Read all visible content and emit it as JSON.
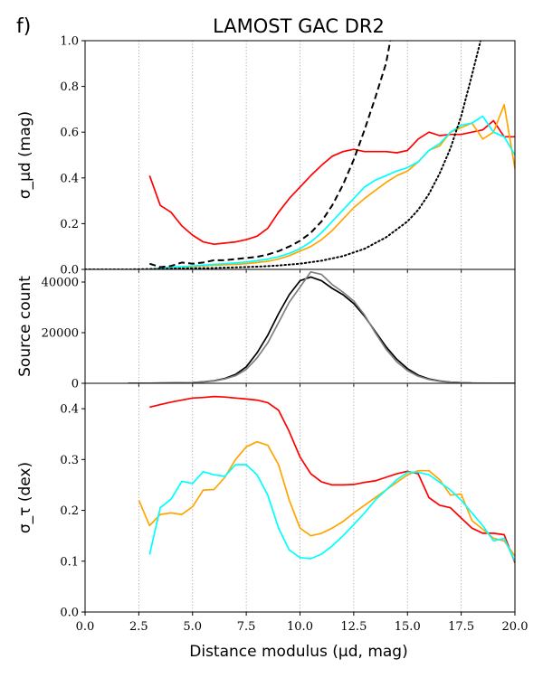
{
  "panel_label": "f)",
  "chart_data": {
    "type": "line",
    "title": "LAMOST GAC DR2",
    "xlabel": "Distance modulus (μd, mag)",
    "xlim": [
      0,
      20
    ],
    "x_ticks": [
      0,
      2.5,
      5,
      7.5,
      10,
      12.5,
      15,
      17.5,
      20
    ],
    "x_tick_labels": [
      "0.0",
      "2.5",
      "5.0",
      "7.5",
      "10.0",
      "12.5",
      "15.0",
      "17.5",
      "20.0"
    ],
    "vertical_dotted_lines_x": [
      2.5,
      5,
      7.5,
      10,
      12.5,
      15,
      17.5
    ],
    "panels": [
      {
        "id": "sigma_mu",
        "ylabel": "σ_μd (mag)",
        "ylim": [
          0,
          1
        ],
        "y_ticks": [
          0,
          0.2,
          0.4,
          0.6,
          0.8,
          1.0
        ],
        "y_tick_labels": [
          "0.0",
          "0.2",
          "0.4",
          "0.6",
          "0.8",
          "1.0"
        ],
        "series": [
          {
            "name": "red",
            "color": "#ff0000",
            "style": "solid",
            "x": [
              3,
              3.5,
              4,
              4.5,
              5,
              5.5,
              6,
              6.5,
              7,
              7.5,
              8,
              8.5,
              9,
              9.5,
              10,
              10.5,
              11,
              11.5,
              12,
              12.5,
              13,
              13.5,
              14,
              14.5,
              15,
              15.5,
              16,
              16.5,
              17,
              17.5,
              18,
              18.5,
              19,
              19.5,
              20
            ],
            "y": [
              0.41,
              0.28,
              0.25,
              0.19,
              0.15,
              0.12,
              0.11,
              0.115,
              0.12,
              0.13,
              0.145,
              0.18,
              0.25,
              0.31,
              0.36,
              0.41,
              0.455,
              0.495,
              0.515,
              0.525,
              0.515,
              0.515,
              0.515,
              0.51,
              0.52,
              0.57,
              0.6,
              0.585,
              0.59,
              0.59,
              0.6,
              0.61,
              0.65,
              0.58,
              0.58
            ]
          },
          {
            "name": "orange",
            "color": "#ffa500",
            "style": "solid",
            "x": [
              3,
              3.5,
              4,
              4.5,
              5,
              5.5,
              6,
              6.5,
              7,
              7.5,
              8,
              8.5,
              9,
              9.5,
              10,
              10.5,
              11,
              11.5,
              12,
              12.5,
              13,
              13.5,
              14,
              14.5,
              15,
              15.5,
              16,
              16.5,
              17,
              17.5,
              18,
              18.5,
              19,
              19.5,
              20
            ],
            "y": [
              0.0,
              0.005,
              0.008,
              0.01,
              0.012,
              0.015,
              0.018,
              0.02,
              0.022,
              0.025,
              0.03,
              0.035,
              0.045,
              0.06,
              0.08,
              0.1,
              0.13,
              0.17,
              0.22,
              0.27,
              0.31,
              0.345,
              0.38,
              0.41,
              0.43,
              0.47,
              0.52,
              0.54,
              0.6,
              0.62,
              0.64,
              0.57,
              0.6,
              0.72,
              0.44
            ]
          },
          {
            "name": "cyan",
            "color": "#00ffff",
            "style": "solid",
            "x": [
              3,
              3.5,
              4,
              4.5,
              5,
              5.5,
              6,
              6.5,
              7,
              7.5,
              8,
              8.5,
              9,
              9.5,
              10,
              10.5,
              11,
              11.5,
              12,
              12.5,
              13,
              13.5,
              14,
              14.5,
              15,
              15.5,
              16,
              16.5,
              17,
              17.5,
              18,
              18.5,
              19,
              19.5,
              20
            ],
            "y": [
              0.0,
              0.005,
              0.01,
              0.012,
              0.015,
              0.018,
              0.022,
              0.025,
              0.028,
              0.032,
              0.038,
              0.045,
              0.055,
              0.07,
              0.09,
              0.12,
              0.16,
              0.21,
              0.26,
              0.31,
              0.36,
              0.39,
              0.41,
              0.43,
              0.445,
              0.47,
              0.52,
              0.55,
              0.6,
              0.63,
              0.64,
              0.67,
              0.6,
              0.58,
              0.5
            ]
          },
          {
            "name": "black dashed",
            "color": "#000000",
            "style": "dashed",
            "x": [
              3,
              3.5,
              4,
              4.5,
              5,
              5.5,
              6,
              6.5,
              7,
              7.5,
              8,
              8.5,
              9,
              9.5,
              10,
              10.5,
              11,
              11.5,
              12,
              12.5,
              13,
              13.5,
              14,
              14.2
            ],
            "y": [
              0.025,
              0.01,
              0.015,
              0.03,
              0.025,
              0.03,
              0.04,
              0.04,
              0.045,
              0.05,
              0.055,
              0.065,
              0.08,
              0.1,
              0.125,
              0.16,
              0.21,
              0.28,
              0.37,
              0.48,
              0.61,
              0.75,
              0.9,
              1.0
            ]
          },
          {
            "name": "black dotted",
            "color": "#000000",
            "style": "dotted",
            "x": [
              0,
              2,
              4,
              6,
              8,
              9,
              10,
              11,
              12,
              13,
              14,
              15,
              15.5,
              16,
              16.5,
              17,
              17.5,
              18,
              18.4
            ],
            "y": [
              0.0,
              0.0,
              0.003,
              0.006,
              0.012,
              0.017,
              0.025,
              0.038,
              0.058,
              0.09,
              0.14,
              0.21,
              0.26,
              0.33,
              0.42,
              0.53,
              0.67,
              0.85,
              1.0
            ]
          }
        ]
      },
      {
        "id": "source_count",
        "ylabel": "Source count",
        "ylim": [
          0,
          45000
        ],
        "y_ticks": [
          0,
          20000,
          40000
        ],
        "y_tick_labels": [
          "0",
          "20000",
          "40000"
        ],
        "series": [
          {
            "name": "black",
            "color": "#000000",
            "style": "solid",
            "x": [
              2,
              3,
              4,
              5,
              5.5,
              6,
              6.5,
              7,
              7.5,
              8,
              8.5,
              9,
              9.5,
              10,
              10.5,
              11,
              11.5,
              12,
              12.5,
              13,
              13.5,
              14,
              14.5,
              15,
              15.5,
              16,
              16.5,
              17,
              17.5,
              18,
              19,
              20
            ],
            "y": [
              0,
              50,
              150,
              300,
              600,
              1000,
              1900,
              3500,
              6500,
              12000,
              19000,
              27500,
              35000,
              40500,
              42000,
              40500,
              37500,
              35000,
              31500,
              26500,
              20500,
              14500,
              9500,
              5800,
              3200,
              1700,
              900,
              450,
              250,
              120,
              40,
              10
            ]
          },
          {
            "name": "gray",
            "color": "#808080",
            "style": "solid",
            "x": [
              2,
              3,
              4,
              5,
              5.5,
              6,
              6.5,
              7,
              7.5,
              8,
              8.5,
              9,
              9.5,
              10,
              10.5,
              11,
              11.5,
              12,
              12.5,
              13,
              13.5,
              14,
              14.5,
              15,
              15.5,
              16,
              16.5,
              17,
              17.5,
              18,
              19,
              20
            ],
            "y": [
              0,
              50,
              150,
              300,
              550,
              900,
              1700,
              3000,
              5500,
              10000,
              16000,
              24000,
              32000,
              38000,
              44000,
              43000,
              39000,
              36000,
              32500,
              27000,
              20000,
              13500,
              8500,
              5000,
              2800,
              1500,
              800,
              400,
              200,
              100,
              30,
              10
            ]
          }
        ]
      },
      {
        "id": "sigma_tau",
        "ylabel": "σ_τ (dex)",
        "ylim": [
          0,
          0.45
        ],
        "y_ticks": [
          0,
          0.1,
          0.2,
          0.3,
          0.4
        ],
        "y_tick_labels": [
          "0.0",
          "0.1",
          "0.2",
          "0.3",
          "0.4"
        ],
        "series": [
          {
            "name": "red",
            "color": "#ff0000",
            "style": "solid",
            "x": [
              3,
              3.5,
              4,
              4.5,
              5,
              5.5,
              6,
              6.5,
              7,
              7.5,
              8,
              8.5,
              9,
              9.5,
              10,
              10.5,
              11,
              11.5,
              12,
              12.5,
              13,
              13.5,
              14,
              14.5,
              15,
              15.5,
              16,
              16.5,
              17,
              17.5,
              18,
              18.5,
              19,
              19.5,
              20
            ],
            "y": [
              0.403,
              0.408,
              0.413,
              0.417,
              0.421,
              0.422,
              0.424,
              0.423,
              0.421,
              0.419,
              0.417,
              0.412,
              0.397,
              0.355,
              0.305,
              0.272,
              0.256,
              0.25,
              0.25,
              0.251,
              0.255,
              0.258,
              0.265,
              0.272,
              0.277,
              0.272,
              0.225,
              0.21,
              0.205,
              0.185,
              0.165,
              0.155,
              0.155,
              0.152,
              0.097
            ]
          },
          {
            "name": "orange",
            "color": "#ffa500",
            "style": "solid",
            "x": [
              2.5,
              3,
              3.5,
              4,
              4.5,
              5,
              5.5,
              6,
              6.5,
              7,
              7.5,
              8,
              8.5,
              9,
              9.5,
              10,
              10.5,
              11,
              11.5,
              12,
              12.5,
              13,
              13.5,
              14,
              14.5,
              15,
              15.5,
              16,
              16.5,
              17,
              17.5,
              18,
              18.5,
              19,
              19.5,
              20
            ],
            "y": [
              0.22,
              0.17,
              0.192,
              0.195,
              0.192,
              0.207,
              0.24,
              0.241,
              0.265,
              0.3,
              0.325,
              0.335,
              0.328,
              0.29,
              0.22,
              0.165,
              0.15,
              0.155,
              0.165,
              0.178,
              0.195,
              0.21,
              0.225,
              0.24,
              0.255,
              0.27,
              0.278,
              0.278,
              0.26,
              0.23,
              0.232,
              0.18,
              0.163,
              0.145,
              0.14,
              0.11
            ]
          },
          {
            "name": "cyan",
            "color": "#00ffff",
            "style": "solid",
            "x": [
              3,
              3.5,
              4,
              4.5,
              5,
              5.5,
              6,
              6.5,
              7,
              7.5,
              8,
              8.5,
              9,
              9.5,
              10,
              10.5,
              11,
              11.5,
              12,
              12.5,
              13,
              13.5,
              14,
              14.5,
              15,
              15.5,
              16,
              16.5,
              17,
              17.5,
              18,
              18.5,
              19,
              19.5,
              20
            ],
            "y": [
              0.113,
              0.205,
              0.222,
              0.257,
              0.253,
              0.276,
              0.27,
              0.267,
              0.29,
              0.29,
              0.27,
              0.23,
              0.165,
              0.122,
              0.107,
              0.105,
              0.114,
              0.13,
              0.15,
              0.172,
              0.195,
              0.22,
              0.24,
              0.26,
              0.275,
              0.275,
              0.27,
              0.255,
              0.24,
              0.22,
              0.195,
              0.17,
              0.14,
              0.145,
              0.1
            ]
          }
        ]
      }
    ]
  }
}
